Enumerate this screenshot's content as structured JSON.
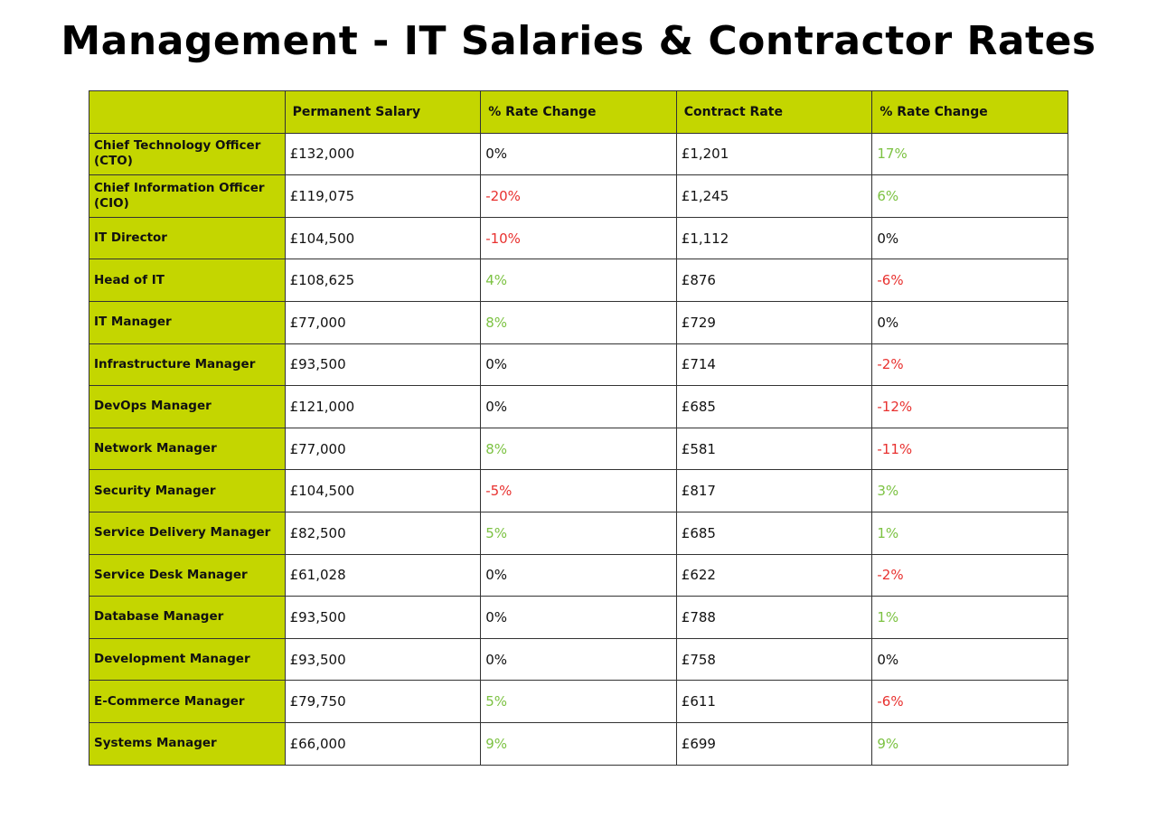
{
  "title": "Management - IT Salaries & Contractor Rates",
  "colors": {
    "header_bg": "#c4d600",
    "negative": "#e8312f",
    "positive": "#7cc242"
  },
  "columns": [
    "",
    "Permanent Salary",
    "% Rate Change",
    "Contract Rate",
    "% Rate Change"
  ],
  "rows": [
    [
      "Chief Technology Officer (CTO)",
      "£132,000",
      "0%",
      "£1,201",
      "17%"
    ],
    [
      "Chief Information Officer (CIO)",
      "£119,075",
      "-20%",
      "£1,245",
      "6%"
    ],
    [
      "IT Director",
      "£104,500",
      "-10%",
      "£1,112",
      "0%"
    ],
    [
      "Head of IT",
      "£108,625",
      "4%",
      "£876",
      "-6%"
    ],
    [
      "IT Manager",
      "£77,000",
      "8%",
      "£729",
      "0%"
    ],
    [
      "Infrastructure Manager",
      "£93,500",
      "0%",
      "£714",
      "-2%"
    ],
    [
      "DevOps Manager",
      "£121,000",
      "0%",
      "£685",
      "-12%"
    ],
    [
      "Network Manager",
      "£77,000",
      "8%",
      "£581",
      "-11%"
    ],
    [
      "Security Manager",
      "£104,500",
      "-5%",
      "£817",
      "3%"
    ],
    [
      "Service Delivery Manager",
      "£82,500",
      "5%",
      "£685",
      "1%"
    ],
    [
      "Service Desk Manager",
      "£61,028",
      "0%",
      "£622",
      "-2%"
    ],
    [
      "Database Manager",
      "£93,500",
      "0%",
      "£788",
      "1%"
    ],
    [
      "Development Manager",
      "£93,500",
      "0%",
      "£758",
      "0%"
    ],
    [
      "E-Commerce Manager",
      "£79,750",
      "5%",
      "£611",
      "-6%"
    ],
    [
      "Systems Manager",
      "£66,000",
      "9%",
      "£699",
      "9%"
    ]
  ]
}
